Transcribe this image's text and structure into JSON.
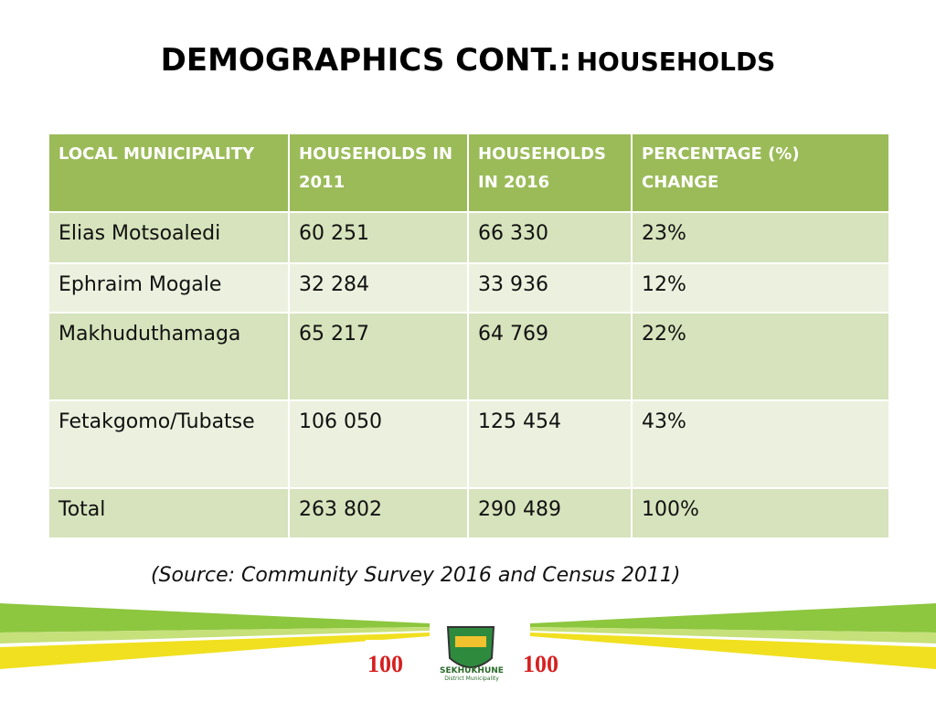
{
  "title": {
    "main": "DEMOGRAPHICS CONT.:",
    "sub": "HOUSEHOLDS"
  },
  "table": {
    "header": [
      "LOCAL MUNICIPALITY",
      "HOUSEHOLDS IN 2011",
      "HOUSEHOLDS IN 2016",
      "PERCENTAGE (%) CHANGE"
    ],
    "rows": [
      [
        "Elias Motsoaledi",
        "60 251",
        "66 330",
        "23%"
      ],
      [
        "Ephraim Mogale",
        "32 284",
        "33 936",
        "12%"
      ],
      [
        "Makhuduthamaga",
        "65 217",
        "64 769",
        "22%"
      ],
      [
        "Fetakgomo/Tubatse",
        "106 050",
        "125 454",
        "43%"
      ],
      [
        "Total",
        "263 802",
        "290 489",
        "100%"
      ]
    ]
  },
  "source": "(Source: Community Survey 2016 and Census 2011)",
  "logo": {
    "name": "SEKHUKHUNE",
    "subtitle": "District Municipality"
  }
}
